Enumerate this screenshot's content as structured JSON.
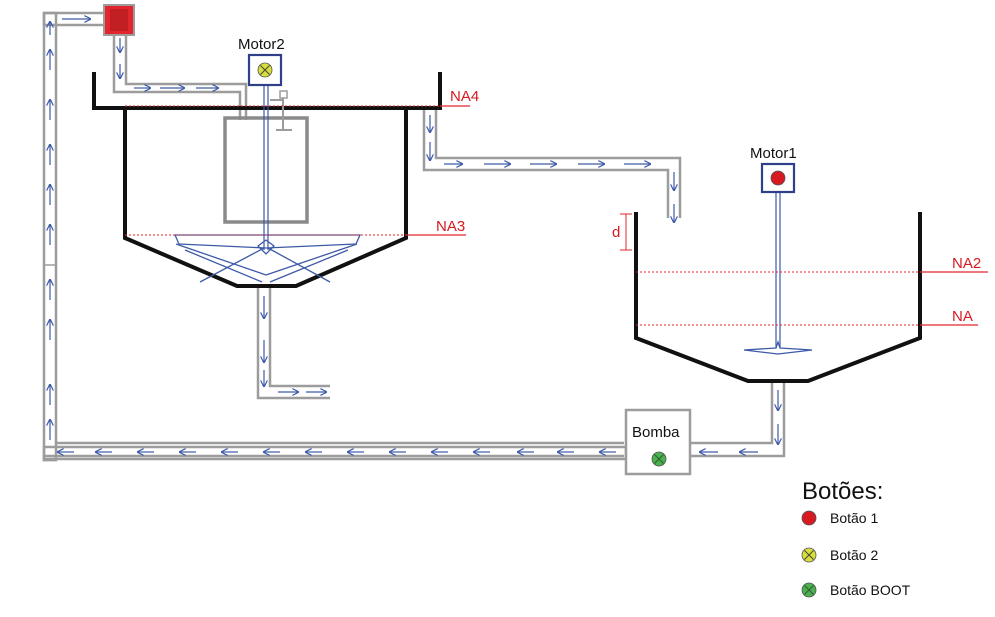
{
  "labels": {
    "motor2": "Motor2",
    "motor1": "Motor1",
    "pump": "Bomba",
    "na4": "NA4",
    "na3": "NA3",
    "na2": "NA2",
    "na": "NA",
    "d": "d"
  },
  "legend": {
    "title": "Botões:",
    "items": [
      {
        "label": "Botão 1",
        "icon": "red-circle-icon",
        "color": "#d71920"
      },
      {
        "label": "Botão 2",
        "icon": "yellow-x-circle-icon",
        "color": "#d9df3a"
      },
      {
        "label": "Botão BOOT",
        "icon": "green-x-circle-icon",
        "color": "#4caf50"
      }
    ]
  },
  "colors": {
    "pipe": "#9c9c9c",
    "flow_arrow": "#3d5aa8",
    "tank": "#111111",
    "level": "#e0262d",
    "valve": "#e3262d"
  }
}
